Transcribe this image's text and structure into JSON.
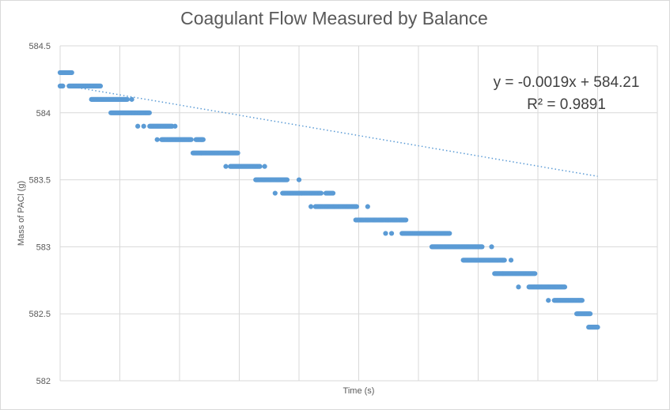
{
  "chart_data": {
    "type": "scatter",
    "title": "Coagulant Flow Measured by Balance",
    "xlabel": "Time (s)",
    "ylabel": "Mass of PACl (g)",
    "ylim": [
      582,
      584.5
    ],
    "yticks": [
      "584.5",
      "584",
      "583.5",
      "583",
      "582.5",
      "582"
    ],
    "xlim": [
      0,
      400
    ],
    "x_tick_labels_shown": false,
    "grid": "major vertical and horizontal",
    "legend": "none",
    "marker_color": "#5b9bd5",
    "trendline": {
      "type": "linear",
      "slope": -0.0019,
      "intercept": 584.21,
      "r2": 0.9891,
      "equation_label": "y = -0.0019x + 584.21",
      "r2_label": "R² = 0.9891",
      "style": "dotted"
    },
    "series": [
      {
        "segments": [
          {
            "y": 584.3,
            "x_start": 0,
            "x_end": 8
          },
          {
            "y": 584.2,
            "x_start": 0,
            "x_end": 2
          },
          {
            "y": 584.2,
            "x_start": 6,
            "x_end": 27
          },
          {
            "y": 584.1,
            "x_start": 21,
            "x_end": 45
          },
          {
            "y": 584.1,
            "x_start": 48,
            "x_end": 48
          },
          {
            "y": 584.0,
            "x_start": 34,
            "x_end": 60
          },
          {
            "y": 583.9,
            "x_start": 52,
            "x_end": 52
          },
          {
            "y": 583.9,
            "x_start": 56,
            "x_end": 56
          },
          {
            "y": 583.9,
            "x_start": 60,
            "x_end": 75
          },
          {
            "y": 583.9,
            "x_start": 77,
            "x_end": 77
          },
          {
            "y": 583.8,
            "x_start": 65,
            "x_end": 65
          },
          {
            "y": 583.8,
            "x_start": 68,
            "x_end": 88
          },
          {
            "y": 583.8,
            "x_start": 91,
            "x_end": 96
          },
          {
            "y": 583.7,
            "x_start": 89,
            "x_end": 119
          },
          {
            "y": 583.6,
            "x_start": 111,
            "x_end": 111
          },
          {
            "y": 583.6,
            "x_start": 114,
            "x_end": 134
          },
          {
            "y": 583.6,
            "x_start": 137,
            "x_end": 137
          },
          {
            "y": 583.5,
            "x_start": 131,
            "x_end": 152
          },
          {
            "y": 583.5,
            "x_start": 160,
            "x_end": 160
          },
          {
            "y": 583.4,
            "x_start": 144,
            "x_end": 144
          },
          {
            "y": 583.4,
            "x_start": 149,
            "x_end": 175
          },
          {
            "y": 583.4,
            "x_start": 178,
            "x_end": 183
          },
          {
            "y": 583.3,
            "x_start": 168,
            "x_end": 168
          },
          {
            "y": 583.3,
            "x_start": 171,
            "x_end": 199
          },
          {
            "y": 583.3,
            "x_start": 206,
            "x_end": 206
          },
          {
            "y": 583.2,
            "x_start": 198,
            "x_end": 232
          },
          {
            "y": 583.1,
            "x_start": 218,
            "x_end": 218
          },
          {
            "y": 583.1,
            "x_start": 222,
            "x_end": 222
          },
          {
            "y": 583.1,
            "x_start": 229,
            "x_end": 261
          },
          {
            "y": 583.0,
            "x_start": 249,
            "x_end": 283
          },
          {
            "y": 583.0,
            "x_start": 289,
            "x_end": 289
          },
          {
            "y": 582.9,
            "x_start": 270,
            "x_end": 298
          },
          {
            "y": 582.9,
            "x_start": 302,
            "x_end": 302
          },
          {
            "y": 582.8,
            "x_start": 291,
            "x_end": 318
          },
          {
            "y": 582.7,
            "x_start": 307,
            "x_end": 307
          },
          {
            "y": 582.7,
            "x_start": 314,
            "x_end": 338
          },
          {
            "y": 582.6,
            "x_start": 327,
            "x_end": 327
          },
          {
            "y": 582.6,
            "x_start": 331,
            "x_end": 350
          },
          {
            "y": 582.5,
            "x_start": 346,
            "x_end": 355
          },
          {
            "y": 582.4,
            "x_start": 354,
            "x_end": 360
          }
        ]
      }
    ]
  }
}
